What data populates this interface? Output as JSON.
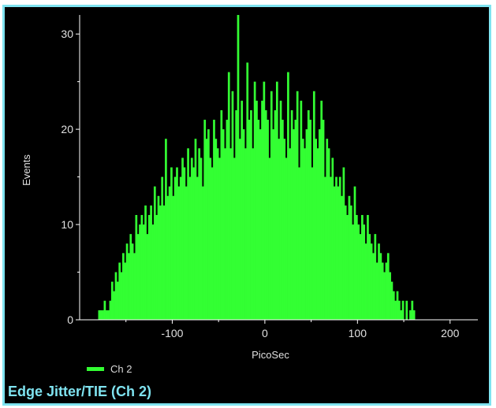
{
  "chart_data": {
    "type": "bar",
    "title": "Edge Jitter/TIE (Ch 2)",
    "xlabel": "PicoSec",
    "ylabel": "Events",
    "xlim": [
      -200,
      230
    ],
    "ylim": [
      0,
      32
    ],
    "xticks": [
      -100,
      0,
      100,
      200
    ],
    "xtick_labels": [
      "-100",
      "0",
      "100",
      "200"
    ],
    "yticks": [
      0,
      10,
      20,
      30
    ],
    "ytick_labels": [
      "0",
      "10",
      "20",
      "30"
    ],
    "series_name": "Ch 2",
    "series_color": "#33ff33",
    "bin_width": 2,
    "x_start": -180,
    "values": [
      1,
      1,
      1,
      2,
      1,
      1,
      2,
      4,
      3,
      5,
      4,
      6,
      5,
      7,
      6,
      8,
      7,
      9,
      8,
      7,
      11,
      9,
      10,
      11,
      10,
      12,
      9,
      11,
      12,
      10,
      14,
      11,
      13,
      12,
      15,
      12,
      19,
      13,
      14,
      16,
      13,
      15,
      16,
      14,
      15,
      17,
      16,
      14,
      18,
      15,
      17,
      16,
      19,
      15,
      18,
      17,
      14,
      21,
      19,
      20,
      17,
      16,
      21,
      19,
      18,
      17,
      22,
      20,
      18,
      21,
      26,
      18,
      24,
      17,
      22,
      32,
      19,
      23,
      20,
      18,
      27,
      21,
      22,
      18,
      25,
      23,
      21,
      20,
      23,
      25,
      22,
      21,
      17,
      24,
      20,
      22,
      25,
      19,
      23,
      21,
      19,
      17,
      26,
      18,
      22,
      20,
      21,
      24,
      16,
      23,
      19,
      18,
      20,
      22,
      21,
      16,
      24,
      19,
      18,
      20,
      23,
      21,
      15,
      19,
      18,
      15,
      17,
      14,
      15,
      14,
      15,
      13,
      16,
      12,
      11,
      13,
      12,
      10,
      14,
      11,
      10,
      9,
      11,
      10,
      8,
      11,
      9,
      8,
      7,
      9,
      6,
      8,
      7,
      6,
      5,
      6,
      7,
      5,
      4,
      3,
      2,
      3,
      2,
      1,
      2,
      0,
      2,
      0,
      1,
      2,
      1
    ]
  }
}
